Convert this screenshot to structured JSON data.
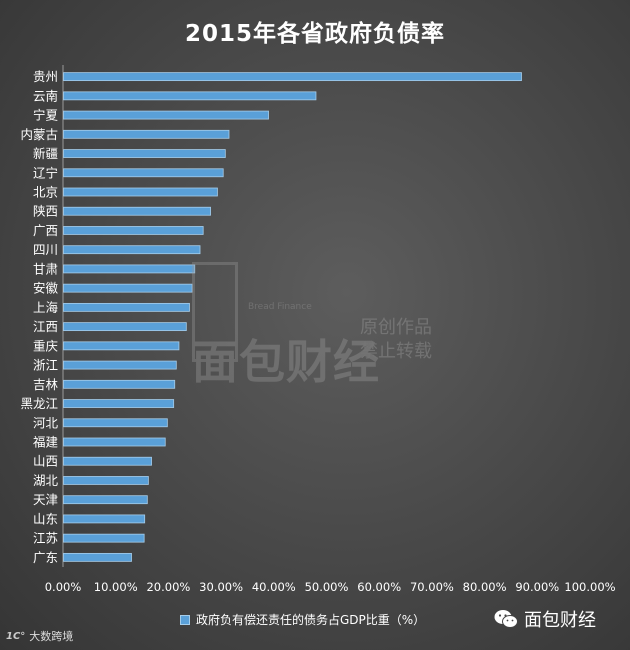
{
  "chart_data": {
    "type": "bar",
    "orientation": "horizontal",
    "title": "2015年各省政府负债率",
    "categories": [
      "贵州",
      "云南",
      "宁夏",
      "内蒙古",
      "新疆",
      "辽宁",
      "北京",
      "陕西",
      "广西",
      "四川",
      "甘肃",
      "安徽",
      "上海",
      "江西",
      "重庆",
      "浙江",
      "吉林",
      "黑龙江",
      "河北",
      "福建",
      "山西",
      "湖北",
      "天津",
      "山东",
      "江苏",
      "广东"
    ],
    "series": [
      {
        "name": "政府负有偿还责任的债务占GDP比重（%）",
        "values": [
          0.87,
          0.48,
          0.39,
          0.315,
          0.308,
          0.304,
          0.293,
          0.28,
          0.266,
          0.26,
          0.25,
          0.245,
          0.24,
          0.234,
          0.22,
          0.215,
          0.212,
          0.21,
          0.198,
          0.194,
          0.168,
          0.162,
          0.16,
          0.155,
          0.154,
          0.13
        ]
      }
    ],
    "xlim": [
      0,
      1.0
    ],
    "ticks": [
      "0.00%",
      "10.00%",
      "20.00%",
      "30.00%",
      "40.00%",
      "50.00%",
      "60.00%",
      "70.00%",
      "80.00%",
      "90.00%",
      "100.00%"
    ],
    "grid": false,
    "legend_position": "bottom",
    "colors": {
      "bar_fill": "#5aa0d8",
      "bar_edge": "#a6cdea",
      "text": "#ffffff"
    }
  },
  "watermark": {
    "logo_text": "面包财经",
    "english": "Bread Finance",
    "line1": "原创作品",
    "line2": "禁止转载"
  },
  "brand": {
    "name": "面包财经",
    "icon": "wechat-icon"
  },
  "source": {
    "icon": "dashu-logo-icon",
    "text": "大数跨境"
  }
}
